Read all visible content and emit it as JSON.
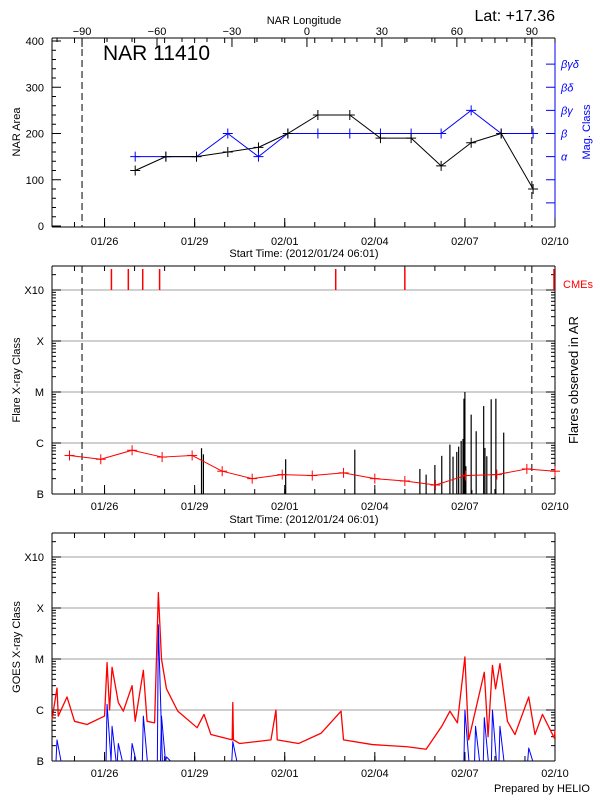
{
  "header": {
    "lat_label": "Lat: +17.36"
  },
  "colors": {
    "area": "#000000",
    "mag_class": "#0000ff",
    "flare_avg": "#ff0000",
    "cme": "#ff0000",
    "goes_long": "#ff0000",
    "goes_short": "#0000ff",
    "grid": "#a0a0a0"
  },
  "chart_data": [
    {
      "type": "line",
      "title": "NAR 11410",
      "xlabel": "Start Time: (2012/01/24 06:01)",
      "xlim": [
        "01/24 06:00",
        "02/10 00:00"
      ],
      "xticks": [
        "01/26",
        "01/29",
        "02/01",
        "02/04",
        "02/07",
        "02/10"
      ],
      "top_axis_label": "NAR Longitude",
      "top_ticks": [
        "-90",
        "-60",
        "-30",
        "0",
        "30",
        "60",
        "90"
      ],
      "limb_crossings": [
        "01/25 06:00",
        "02/09 05:30"
      ],
      "ylabel": "NAR Area",
      "ylim": [
        0,
        400
      ],
      "yticks": [
        "0",
        "100",
        "200",
        "300",
        "400"
      ],
      "y2label": "Mag. Class",
      "y2ticks": [
        "",
        "",
        "α",
        "β",
        "βγ",
        "βδ",
        "βγδ"
      ],
      "series": [
        {
          "key": "area",
          "times": [
            "01/27 00:30",
            "01/28 01:00",
            "01/29 01:30",
            "01/30 02:30",
            "01/31 03:00",
            "02/01 02:30",
            "02/02 02:30",
            "02/03 04:00",
            "02/04 04:30",
            "02/05 05:00",
            "02/06 05:00",
            "02/07 05:00",
            "02/08 05:00",
            "02/09 06:30"
          ],
          "values": [
            120,
            150,
            150,
            160,
            170,
            200,
            240,
            240,
            190,
            190,
            130,
            180,
            200,
            80
          ]
        },
        {
          "key": "mag_class",
          "times": [
            "01/27 00:30",
            "01/28 01:00",
            "01/29 01:30",
            "01/30 02:30",
            "01/31 03:00",
            "02/01 02:30",
            "02/02 02:30",
            "02/03 04:00",
            "02/04 04:30",
            "02/05 05:00",
            "02/06 05:00",
            "02/07 05:00",
            "02/08 05:00",
            "02/09 06:30"
          ],
          "values": [
            "α",
            "α",
            "α",
            "β",
            "α",
            "β",
            "β",
            "β",
            "β",
            "β",
            "β",
            "βγ",
            "β",
            "β"
          ]
        }
      ]
    },
    {
      "type": "bar",
      "xlabel": "Start Time: (2012/01/24 06:01)",
      "xlim": [
        "01/24 06:00",
        "02/10 00:00"
      ],
      "xticks": [
        "01/26",
        "01/29",
        "02/01",
        "02/04",
        "02/07",
        "02/10"
      ],
      "ylabel": "Flare X-ray Class",
      "y2label": "Flares observed in AR",
      "yscale": "log",
      "yticks": [
        "B",
        "C",
        "M",
        "X",
        "X10"
      ],
      "limb_crossings": [
        "01/25 06:00",
        "02/09 05:30"
      ],
      "cme_label": "CMEs",
      "cmes": [
        "01/26 05:30",
        "01/26 19:00",
        "01/27 06:30",
        "01/27 20:00",
        "02/02 16:45",
        "02/05 00:00",
        "02/09 23:45"
      ],
      "flares": {
        "times": [
          "01/29 05:30",
          "01/29 07:00",
          "02/01 00:45",
          "02/03 08:00",
          "02/05 12:00",
          "02/05 17:00",
          "02/06 00:00",
          "02/06 05:30",
          "02/06 12:00",
          "02/06 14:30",
          "02/06 17:30",
          "02/06 19:00",
          "02/06 21:00",
          "02/06 22:30",
          "02/06 23:15",
          "02/07 00:00",
          "02/07 00:45",
          "02/07 05:00",
          "02/07 05:30",
          "02/07 09:00",
          "02/07 15:00",
          "02/07 16:00",
          "02/07 17:30",
          "02/07 21:00",
          "02/08 00:45",
          "02/08 07:00"
        ],
        "flux": [
          7.9e-07,
          6e-07,
          4.8e-07,
          7.4e-07,
          3.1e-07,
          2.4e-07,
          3.7e-07,
          5.6e-07,
          9.3e-07,
          5.4e-07,
          6.7e-07,
          8.5e-07,
          1.1e-06,
          1.2e-06,
          7.4e-06,
          1e-05,
          3.5e-07,
          3.6e-06,
          1.2e-07,
          1.7e-06,
          5.3e-06,
          8e-07,
          5.5e-07,
          7.2e-06,
          7.4e-06,
          1.6e-06
        ]
      },
      "background": {
        "times": [
          "01/24 20:00",
          "01/25 21:00",
          "01/26 22:00",
          "01/27 22:00",
          "01/28 22:00",
          "01/29 22:00",
          "01/30 22:00",
          "01/31 22:00",
          "02/01 22:00",
          "02/02 23:00",
          "02/04 00:00",
          "02/05 00:00",
          "02/06 00:30",
          "02/07 00:30",
          "02/08 01:30",
          "02/09 01:30",
          "02/10 00:00"
        ],
        "flux": [
          5.7e-07,
          4.8e-07,
          7.2e-07,
          5.3e-07,
          5.7e-07,
          2.8e-07,
          2e-07,
          2.4e-07,
          2.3e-07,
          2.6e-07,
          2e-07,
          1.8e-07,
          1.5e-07,
          2.3e-07,
          2.4e-07,
          3.1e-07,
          2.8e-07
        ]
      }
    },
    {
      "type": "line",
      "xlim": [
        "01/24 06:00",
        "02/10 00:00"
      ],
      "xticks": [
        "01/26",
        "01/29",
        "02/01",
        "02/04",
        "02/07",
        "02/10"
      ],
      "ylabel": "GOES X-ray Class",
      "yscale": "log",
      "yticks": [
        "B",
        "C",
        "M",
        "X",
        "X10"
      ],
      "series": [
        {
          "key": "goes_long",
          "times": [
            "01/24 06:00",
            "01/24 10:00",
            "01/24 11:00",
            "01/24 18:00",
            "01/25 00:00",
            "01/25 10:00",
            "01/26 00:00",
            "01/26 02:00",
            "01/26 04:00",
            "01/26 06:00",
            "01/26 11:00",
            "01/26 15:00",
            "01/26 22:00",
            "01/27 00:30",
            "01/27 07:00",
            "01/27 10:00",
            "01/27 16:00",
            "01/27 19:00",
            "01/27 21:30",
            "01/28 01:30",
            "01/28 10:30",
            "01/29 02:00",
            "01/29 07:30",
            "01/29 13:00",
            "01/30 06:00",
            "01/30 06:30",
            "01/30 07:00",
            "01/30 12:00",
            "01/31 13:00",
            "01/31 17:00",
            "01/31 18:00",
            "02/01 11:00",
            "02/02 05:00",
            "02/02 21:00",
            "02/02 23:00",
            "02/03 22:00",
            "02/05 02:00",
            "02/05 17:00",
            "02/06 05:30",
            "02/06 12:00",
            "02/06 18:00",
            "02/07 00:00",
            "02/07 03:00",
            "02/07 15:30",
            "02/07 18:30",
            "02/07 22:00",
            "02/08 00:30",
            "02/08 04:00",
            "02/08 07:00",
            "02/08 10:00",
            "02/08 16:00",
            "02/09 03:00",
            "02/09 08:00",
            "02/09 14:00",
            "02/09 23:30",
            "02/10 00:00"
          ],
          "flux": [
            6.5e-07,
            2.7e-06,
            7.6e-07,
            1.8e-06,
            6e-07,
            5.2e-07,
            7.6e-07,
            8.5e-06,
            1e-06,
            6.9e-06,
            1.4e-06,
            9.5e-07,
            3e-06,
            6e-07,
            6e-06,
            6e-07,
            5.6e-07,
            0.0002,
            1e-05,
            2.6e-06,
            9.5e-07,
            4.5e-07,
            8.2e-07,
            3.3e-07,
            2.6e-07,
            1.4e-06,
            2.6e-07,
            2.2e-07,
            2.6e-07,
            1e-06,
            2.6e-07,
            2.2e-07,
            3.5e-07,
            9.5e-07,
            2.6e-07,
            2.1e-07,
            1.9e-07,
            1.7e-07,
            4.8e-07,
            9.5e-07,
            5.6e-07,
            1.1e-05,
            2.6e-07,
            5.5e-06,
            3e-07,
            7.5e-06,
            2.6e-06,
            8.1e-06,
            2.2e-06,
            6e-07,
            3.3e-07,
            1.8e-06,
            3.3e-07,
            8.2e-07,
            2.8e-07,
            4.1e-07
          ]
        },
        {
          "key": "goes_short",
          "times": [
            "01/24 10:00",
            "01/26 02:00",
            "01/26 06:00",
            "01/26 11:00",
            "01/26 22:00",
            "01/27 07:00",
            "01/27 19:00",
            "01/27 21:30",
            "01/28 01:30",
            "01/30 06:30",
            "02/07 00:00",
            "02/07 08:30",
            "02/07 15:30",
            "02/07 22:00",
            "02/08 04:00",
            "02/09 03:00"
          ],
          "flux": [
            2.6e-07,
            1.3e-06,
            4.8e-07,
            2.2e-07,
            2.2e-07,
            7.6e-07,
            4.7e-05,
            7.6e-07,
            1.2e-07,
            2.4e-07,
            1e-06,
            4.8e-07,
            7.1e-07,
            1e-06,
            4.8e-07,
            1.8e-07
          ]
        }
      ]
    }
  ],
  "footer": {
    "credit": "Prepared by HELIO"
  }
}
